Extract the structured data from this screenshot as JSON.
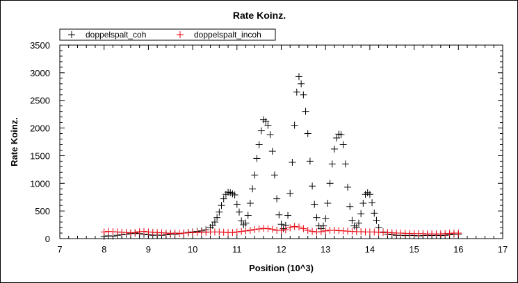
{
  "chart_data": {
    "type": "scatter",
    "title": "Rate Koinz.",
    "xlabel": "Position (10^3)",
    "ylabel": "Rate Koinz.",
    "xlim": [
      7,
      17
    ],
    "ylim": [
      0,
      3500
    ],
    "x_ticks": [
      7,
      8,
      9,
      10,
      11,
      12,
      13,
      14,
      15,
      16,
      17
    ],
    "y_ticks": [
      0,
      500,
      1000,
      1500,
      2000,
      2500,
      3000,
      3500
    ],
    "x_tick_labels": [
      "7",
      "8",
      "9",
      "10",
      "11",
      "12",
      "13",
      "14",
      "15",
      "16",
      "17"
    ],
    "y_tick_labels": [
      "0",
      "500",
      "1000",
      "1500",
      "2000",
      "2500",
      "3000",
      "3500"
    ],
    "grid": false,
    "legend_position": "top-left",
    "marker": "plus",
    "series": [
      {
        "name": "doppelspalt_coh",
        "color": "#000000",
        "x": [
          8.0,
          8.1,
          8.2,
          8.3,
          8.4,
          8.5,
          8.6,
          8.7,
          8.8,
          8.9,
          9.0,
          9.1,
          9.2,
          9.3,
          9.4,
          9.5,
          9.6,
          9.7,
          9.8,
          9.9,
          10.0,
          10.1,
          10.2,
          10.3,
          10.4,
          10.45,
          10.5,
          10.55,
          10.6,
          10.65,
          10.7,
          10.75,
          10.8,
          10.85,
          10.9,
          10.95,
          11.0,
          11.05,
          11.1,
          11.15,
          11.2,
          11.25,
          11.3,
          11.35,
          11.4,
          11.45,
          11.5,
          11.55,
          11.6,
          11.65,
          11.7,
          11.75,
          11.8,
          11.85,
          11.9,
          11.95,
          12.0,
          12.05,
          12.1,
          12.15,
          12.2,
          12.25,
          12.3,
          12.35,
          12.4,
          12.45,
          12.5,
          12.55,
          12.6,
          12.65,
          12.7,
          12.75,
          12.8,
          12.85,
          12.9,
          12.95,
          13.0,
          13.05,
          13.1,
          13.15,
          13.2,
          13.25,
          13.3,
          13.35,
          13.4,
          13.45,
          13.5,
          13.55,
          13.6,
          13.65,
          13.7,
          13.75,
          13.8,
          13.85,
          13.9,
          13.95,
          14.0,
          14.05,
          14.1,
          14.15,
          14.2,
          14.3,
          14.4,
          14.5,
          14.6,
          14.7,
          14.8,
          14.9,
          15.0,
          15.1,
          15.2,
          15.3,
          15.4,
          15.5,
          15.6,
          15.7,
          15.8,
          15.9,
          16.0
        ],
        "y": [
          40,
          50,
          45,
          60,
          70,
          80,
          90,
          100,
          90,
          80,
          70,
          60,
          65,
          60,
          70,
          80,
          80,
          90,
          100,
          110,
          120,
          130,
          140,
          160,
          200,
          240,
          300,
          380,
          480,
          600,
          720,
          800,
          840,
          830,
          810,
          790,
          620,
          480,
          320,
          250,
          280,
          420,
          640,
          900,
          1150,
          1450,
          1700,
          1950,
          2150,
          2120,
          2050,
          1880,
          1580,
          1150,
          720,
          430,
          260,
          180,
          240,
          420,
          820,
          1380,
          2050,
          2650,
          2930,
          2800,
          2600,
          2300,
          1900,
          1400,
          950,
          620,
          380,
          230,
          180,
          230,
          360,
          640,
          1000,
          1350,
          1620,
          1820,
          1890,
          1880,
          1700,
          1350,
          930,
          580,
          330,
          230,
          200,
          280,
          450,
          640,
          800,
          830,
          800,
          650,
          460,
          330,
          200,
          120,
          80,
          70,
          60,
          60,
          55,
          60,
          55,
          50,
          55,
          60,
          55,
          60,
          55,
          60,
          70,
          80,
          80
        ]
      },
      {
        "name": "doppelspalt_incoh",
        "color": "#e8000b",
        "x": [
          8.0,
          8.1,
          8.2,
          8.3,
          8.4,
          8.5,
          8.6,
          8.7,
          8.8,
          8.9,
          9.0,
          9.1,
          9.2,
          9.3,
          9.4,
          9.5,
          9.6,
          9.7,
          9.8,
          9.9,
          10.0,
          10.1,
          10.2,
          10.3,
          10.4,
          10.5,
          10.6,
          10.7,
          10.8,
          10.9,
          11.0,
          11.1,
          11.2,
          11.3,
          11.4,
          11.5,
          11.6,
          11.7,
          11.8,
          11.9,
          12.0,
          12.1,
          12.2,
          12.3,
          12.4,
          12.5,
          12.6,
          12.7,
          12.8,
          12.9,
          13.0,
          13.1,
          13.2,
          13.3,
          13.4,
          13.5,
          13.6,
          13.7,
          13.8,
          13.9,
          14.0,
          14.1,
          14.2,
          14.3,
          14.4,
          14.5,
          14.6,
          14.7,
          14.8,
          14.9,
          15.0,
          15.1,
          15.2,
          15.3,
          15.4,
          15.5,
          15.6,
          15.7,
          15.8,
          15.9,
          16.0
        ],
        "y": [
          120,
          130,
          125,
          120,
          115,
          110,
          105,
          110,
          125,
          130,
          120,
          115,
          110,
          105,
          100,
          95,
          100,
          95,
          100,
          105,
          110,
          110,
          115,
          115,
          120,
          120,
          120,
          115,
          110,
          110,
          120,
          130,
          140,
          150,
          165,
          175,
          185,
          180,
          170,
          150,
          150,
          160,
          195,
          220,
          210,
          180,
          150,
          130,
          120,
          125,
          140,
          150,
          150,
          145,
          140,
          135,
          130,
          125,
          125,
          120,
          120,
          120,
          115,
          110,
          110,
          105,
          100,
          100,
          95,
          95,
          90,
          90,
          90,
          85,
          85,
          85,
          85,
          90,
          95,
          100,
          100
        ]
      }
    ]
  }
}
